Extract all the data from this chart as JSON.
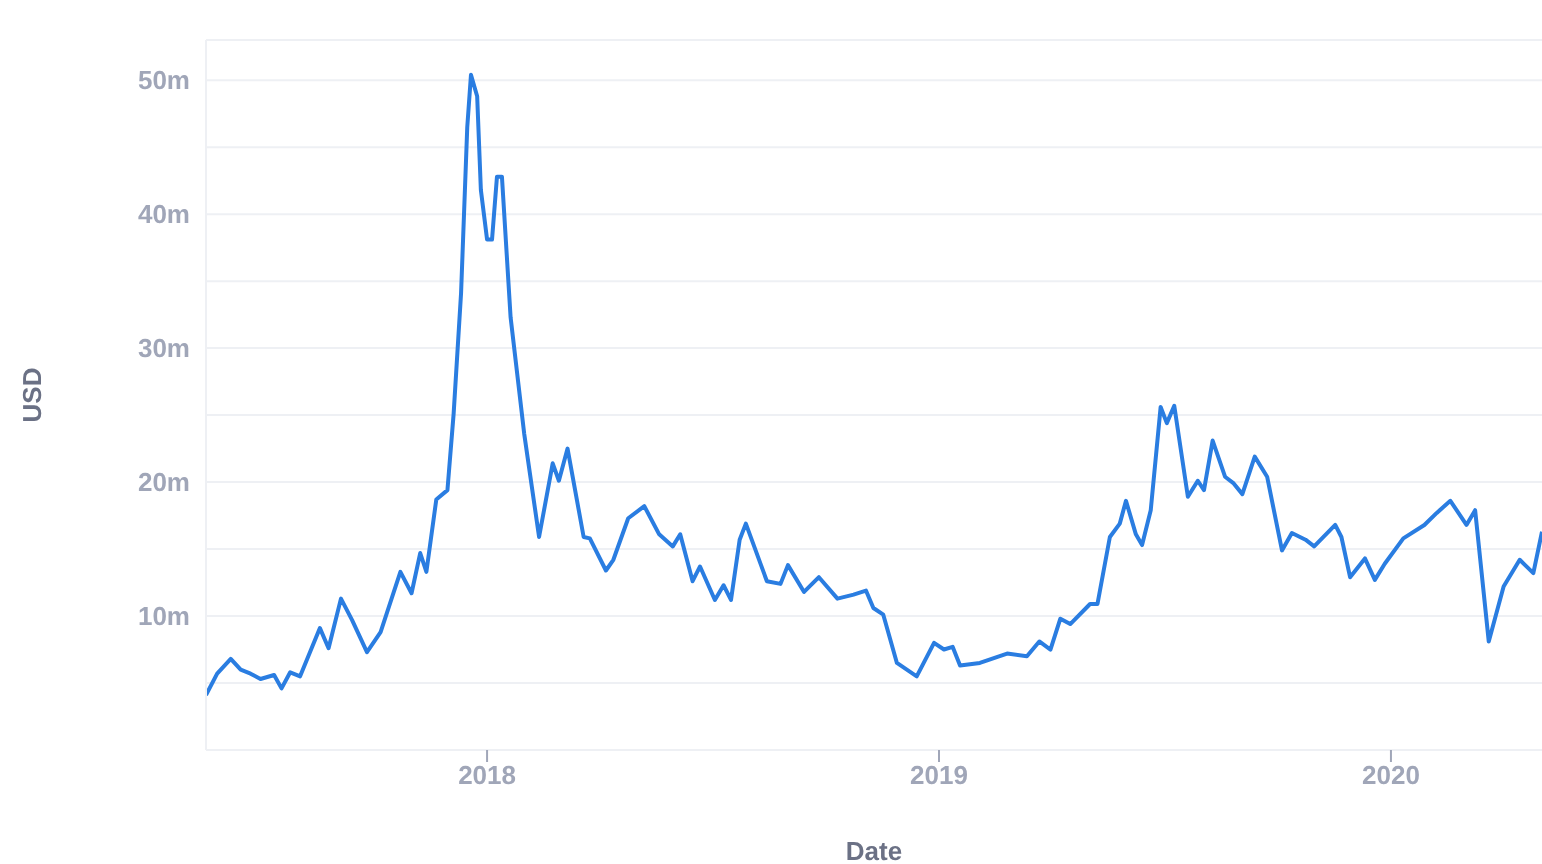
{
  "chart_data": {
    "type": "line",
    "xlabel": "Date",
    "ylabel": "USD",
    "color": "#2a7de1",
    "grid": "y",
    "xlim": [
      "2017-05-19",
      "2020-05-02"
    ],
    "xticks": [
      "2018",
      "2019",
      "2020"
    ],
    "ylim": [
      0,
      53
    ],
    "yticks": [
      {
        "value": 0,
        "label": null
      },
      {
        "value": 5,
        "label": null
      },
      {
        "value": 10,
        "label": "10m"
      },
      {
        "value": 15,
        "label": null
      },
      {
        "value": 20,
        "label": "20m"
      },
      {
        "value": 25,
        "label": null
      },
      {
        "value": 30,
        "label": "30m"
      },
      {
        "value": 35,
        "label": null
      },
      {
        "value": 40,
        "label": "40m"
      },
      {
        "value": 45,
        "label": null
      },
      {
        "value": 50,
        "label": "50m"
      }
    ],
    "x": [
      "2017-05-19",
      "2017-05-28",
      "2017-06-08",
      "2017-06-16",
      "2017-06-24",
      "2017-07-02",
      "2017-07-13",
      "2017-07-19",
      "2017-07-26",
      "2017-08-03",
      "2017-08-19",
      "2017-08-26",
      "2017-09-05",
      "2017-09-14",
      "2017-09-26",
      "2017-10-07",
      "2017-10-23",
      "2017-11-01",
      "2017-11-08",
      "2017-11-13",
      "2017-11-21",
      "2017-11-30",
      "2017-12-05",
      "2017-12-11",
      "2017-12-16",
      "2017-12-19",
      "2017-12-24",
      "2017-12-27",
      "2018-01-01",
      "2018-01-05",
      "2018-01-09",
      "2018-01-13",
      "2018-01-20",
      "2018-01-31",
      "2018-02-12",
      "2018-02-23",
      "2018-02-28",
      "2018-03-07",
      "2018-03-20",
      "2018-03-25",
      "2018-04-07",
      "2018-04-13",
      "2018-04-25",
      "2018-05-08",
      "2018-05-20",
      "2018-05-31",
      "2018-06-06",
      "2018-06-16",
      "2018-06-22",
      "2018-07-04",
      "2018-07-11",
      "2018-07-17",
      "2018-07-24",
      "2018-07-29",
      "2018-08-15",
      "2018-08-26",
      "2018-09-01",
      "2018-09-14",
      "2018-09-26",
      "2018-10-11",
      "2018-10-24",
      "2018-11-03",
      "2018-11-09",
      "2018-11-17",
      "2018-11-28",
      "2018-12-14",
      "2018-12-28",
      "2019-01-05",
      "2019-01-12",
      "2019-01-18",
      "2019-02-03",
      "2019-02-25",
      "2019-03-13",
      "2019-03-23",
      "2019-04-01",
      "2019-04-09",
      "2019-04-17",
      "2019-05-03",
      "2019-05-09",
      "2019-05-19",
      "2019-05-27",
      "2019-06-01",
      "2019-06-09",
      "2019-06-14",
      "2019-06-21",
      "2019-06-29",
      "2019-07-04",
      "2019-07-10",
      "2019-07-21",
      "2019-07-29",
      "2019-08-03",
      "2019-08-10",
      "2019-08-20",
      "2019-08-27",
      "2019-09-03",
      "2019-09-13",
      "2019-09-23",
      "2019-10-05",
      "2019-10-13",
      "2019-10-24",
      "2019-10-31",
      "2019-11-17",
      "2019-11-22",
      "2019-11-29",
      "2019-12-11",
      "2019-12-19",
      "2019-12-27",
      "2020-01-11",
      "2020-01-28",
      "2020-02-07",
      "2020-02-18",
      "2020-03-02",
      "2020-03-09",
      "2020-03-20",
      "2020-04-01",
      "2020-04-14",
      "2020-04-25",
      "2020-05-02"
    ],
    "values": [
      4.1,
      5.7,
      6.8,
      6.0,
      5.7,
      5.3,
      5.6,
      4.6,
      5.8,
      5.5,
      9.1,
      7.6,
      11.3,
      9.7,
      7.3,
      8.8,
      13.3,
      11.7,
      14.7,
      13.3,
      18.7,
      19.4,
      25.1,
      34.1,
      46.5,
      50.4,
      48.8,
      41.8,
      38.1,
      38.1,
      42.8,
      42.8,
      32.3,
      23.6,
      15.9,
      21.4,
      20.1,
      22.5,
      15.9,
      15.8,
      13.4,
      14.2,
      17.3,
      18.2,
      16.1,
      15.2,
      16.1,
      12.6,
      13.7,
      11.2,
      12.3,
      11.2,
      15.7,
      16.9,
      12.6,
      12.4,
      13.8,
      11.8,
      12.9,
      11.3,
      11.6,
      11.9,
      10.6,
      10.1,
      6.5,
      5.5,
      8.0,
      7.5,
      7.7,
      6.3,
      6.5,
      7.2,
      7.0,
      8.1,
      7.5,
      9.8,
      9.4,
      10.9,
      10.9,
      15.9,
      16.9,
      18.6,
      16.1,
      15.3,
      17.9,
      25.6,
      24.4,
      25.7,
      18.9,
      20.1,
      19.4,
      23.1,
      20.4,
      19.9,
      19.1,
      21.9,
      20.4,
      14.9,
      16.2,
      15.7,
      15.2,
      16.8,
      15.9,
      12.9,
      14.3,
      12.7,
      13.9,
      15.8,
      16.8,
      17.7,
      18.6,
      16.8,
      17.9,
      8.1,
      12.2,
      14.2,
      13.2,
      16.3
    ]
  }
}
